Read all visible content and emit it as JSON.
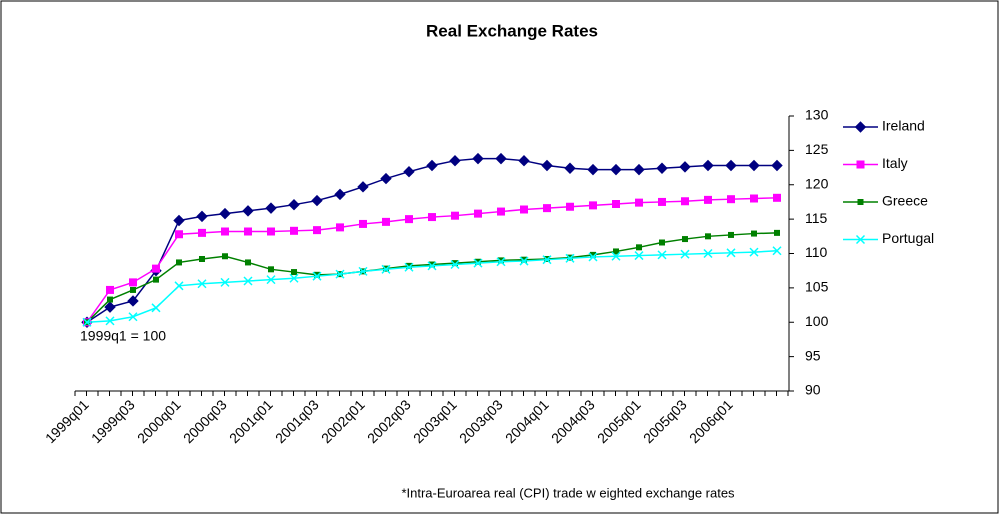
{
  "chart_data": {
    "type": "line",
    "title": "Real Exchange Rates",
    "annotations": [
      "1999q1 = 100",
      "*Intra-Euroarea real (CPI) trade w eighted exchange rates"
    ],
    "categories": [
      "1999q01",
      null,
      "1999q03",
      null,
      "2000q01",
      null,
      "2000q03",
      null,
      "2001q01",
      null,
      "2001q03",
      null,
      "2002q01",
      null,
      "2002q03",
      null,
      "2003q01",
      null,
      "2003q03",
      null,
      "2004q01",
      null,
      "2004q03",
      null,
      "2005q01",
      null,
      "2005q03",
      null,
      "2006q01",
      null,
      null
    ],
    "series": [
      {
        "name": "Ireland",
        "color": "#000080",
        "marker": "diamond",
        "values": [
          100,
          102.2,
          103.1,
          107.5,
          114.8,
          115.4,
          115.8,
          116.2,
          116.6,
          117.1,
          117.7,
          118.6,
          119.7,
          120.9,
          121.9,
          122.8,
          123.5,
          123.8,
          123.8,
          123.5,
          122.8,
          122.4,
          122.2,
          122.2,
          122.2,
          122.4,
          122.6,
          122.8,
          122.8,
          122.8,
          122.8
        ]
      },
      {
        "name": "Italy",
        "color": "#ff00ff",
        "marker": "square",
        "values": [
          100,
          104.7,
          105.8,
          107.8,
          112.8,
          113.0,
          113.2,
          113.2,
          113.2,
          113.3,
          113.4,
          113.8,
          114.3,
          114.6,
          115.0,
          115.3,
          115.5,
          115.8,
          116.1,
          116.4,
          116.6,
          116.8,
          117.0,
          117.2,
          117.4,
          117.5,
          117.6,
          117.8,
          117.9,
          118.0,
          118.1
        ]
      },
      {
        "name": "Greece",
        "color": "#008000",
        "marker": "small-square",
        "values": [
          100,
          103.3,
          104.7,
          106.2,
          108.7,
          109.2,
          109.6,
          108.7,
          107.7,
          107.3,
          106.9,
          107.0,
          107.4,
          107.8,
          108.2,
          108.4,
          108.6,
          108.8,
          109.0,
          109.1,
          109.2,
          109.4,
          109.8,
          110.3,
          110.9,
          111.6,
          112.1,
          112.5,
          112.7,
          112.9,
          113.0
        ]
      },
      {
        "name": "Portugal",
        "color": "#00ffff",
        "marker": "x",
        "values": [
          100,
          100.2,
          100.8,
          102.1,
          105.3,
          105.6,
          105.8,
          106.0,
          106.2,
          106.4,
          106.7,
          107.0,
          107.4,
          107.7,
          108.0,
          108.2,
          108.4,
          108.6,
          108.8,
          108.9,
          109.1,
          109.3,
          109.5,
          109.6,
          109.7,
          109.8,
          109.9,
          110.0,
          110.1,
          110.2,
          110.4
        ]
      }
    ],
    "ylim": [
      90,
      130
    ],
    "yticks": [
      90,
      95,
      100,
      105,
      110,
      115,
      120,
      125,
      130
    ],
    "y_axis_side": "right",
    "grid": false,
    "legend": "right"
  }
}
